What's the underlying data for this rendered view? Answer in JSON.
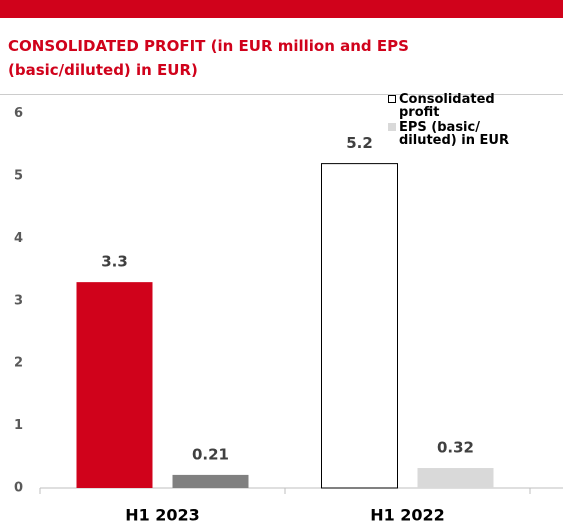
{
  "chart_data": {
    "type": "bar",
    "title": "CONSOLIDATED PROFIT (in EUR million and EPS (basic/diluted) in EUR)",
    "categories": [
      "H1 2023",
      "H1 2022"
    ],
    "series": [
      {
        "name": "Consolidated profit",
        "color": "#ffffff",
        "colors": [
          "#d0021b",
          "#ffffff"
        ],
        "values": [
          3.3,
          5.2
        ]
      },
      {
        "name": "EPS (basic/ diluted) in EUR",
        "color": "#d9d9d9",
        "colors": [
          "#808080",
          "#d9d9d9"
        ],
        "values": [
          0.21,
          0.32
        ]
      }
    ],
    "ylim": [
      0,
      6.3
    ],
    "yticks": [
      0,
      1,
      2,
      3,
      4,
      5,
      6
    ],
    "grid": false,
    "legend": "top-right"
  }
}
